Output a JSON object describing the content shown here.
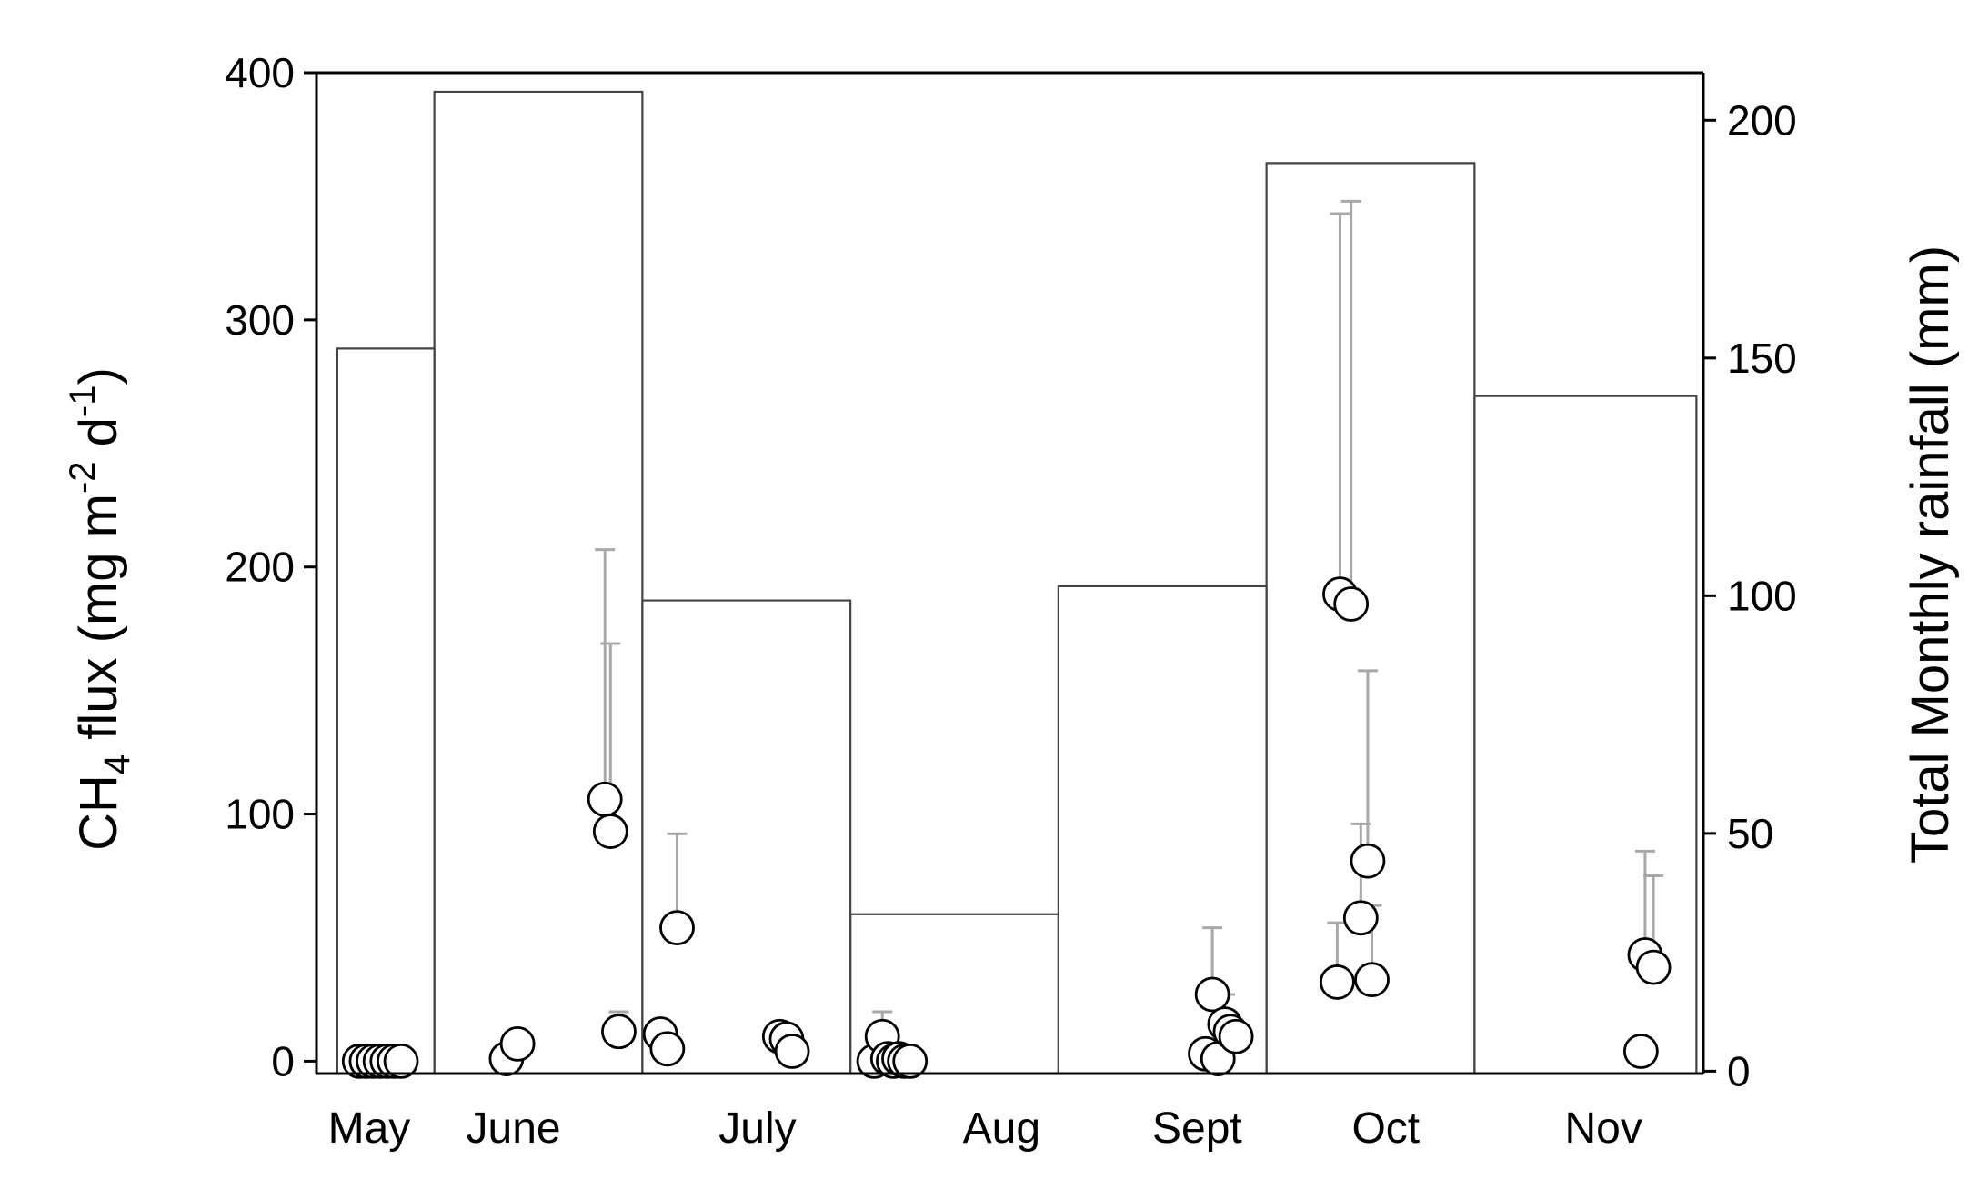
{
  "chart_data": {
    "type": "bar+scatter",
    "y_left": {
      "label": "CH4 flux (mg m-2 d-1)",
      "label_parts": {
        "main": "CH",
        "sub": "4",
        "rest": " flux (mg m",
        "sup1": "-2",
        "mid": " d",
        "sup2": "-1",
        "end": ")"
      },
      "ylim": [
        -5,
        400
      ],
      "ticks": [
        0,
        100,
        200,
        300,
        400
      ]
    },
    "y_right": {
      "label": "Total Monthly rainfall (mm)",
      "ylim": [
        -0.5,
        210
      ],
      "ticks": [
        0,
        50,
        100,
        150,
        200
      ]
    },
    "x": {
      "range": [
        0,
        100
      ]
    },
    "months": [
      {
        "label": "May",
        "label_x": 3.8
      },
      {
        "label": "June",
        "label_x": 14.2
      },
      {
        "label": "July",
        "label_x": 31.8
      },
      {
        "label": "Aug",
        "label_x": 49.4
      },
      {
        "label": "Sept",
        "label_x": 63.5
      },
      {
        "label": "Oct",
        "label_x": 77.1
      },
      {
        "label": "Nov",
        "label_x": 92.8
      }
    ],
    "rainfall_bars": [
      {
        "month": "May",
        "x0": 1.5,
        "x1": 8.5,
        "value": 152
      },
      {
        "month": "June",
        "x0": 8.5,
        "x1": 23.5,
        "value": 206
      },
      {
        "month": "July",
        "x0": 23.5,
        "x1": 38.5,
        "value": 99
      },
      {
        "month": "Aug",
        "x0": 38.5,
        "x1": 53.5,
        "value": 33
      },
      {
        "month": "Sept",
        "x0": 53.5,
        "x1": 68.5,
        "value": 102
      },
      {
        "month": "Oct",
        "x0": 68.5,
        "x1": 83.5,
        "value": 191
      },
      {
        "month": "Nov",
        "x0": 83.5,
        "x1": 99.5,
        "value": 142
      }
    ],
    "ch4_flux_points": [
      {
        "x": 3.1,
        "y": 0,
        "err": 3
      },
      {
        "x": 3.6,
        "y": 0,
        "err": 3
      },
      {
        "x": 4.1,
        "y": 0,
        "err": 3
      },
      {
        "x": 4.6,
        "y": 0,
        "err": 3
      },
      {
        "x": 5.1,
        "y": 0,
        "err": 3
      },
      {
        "x": 5.6,
        "y": 0,
        "err": 3
      },
      {
        "x": 6.1,
        "y": 0,
        "err": 3
      },
      {
        "x": 13.7,
        "y": 1,
        "err": 0
      },
      {
        "x": 14.5,
        "y": 7,
        "err": 0
      },
      {
        "x": 20.8,
        "y": 106,
        "err": 101
      },
      {
        "x": 21.2,
        "y": 93,
        "err": 76
      },
      {
        "x": 21.8,
        "y": 12,
        "err": 8
      },
      {
        "x": 24.8,
        "y": 11,
        "err": 5
      },
      {
        "x": 25.3,
        "y": 5,
        "err": 3
      },
      {
        "x": 26.0,
        "y": 54,
        "err": 38
      },
      {
        "x": 33.4,
        "y": 10,
        "err": 0
      },
      {
        "x": 33.9,
        "y": 9,
        "err": 0
      },
      {
        "x": 34.3,
        "y": 4,
        "err": 0
      },
      {
        "x": 40.2,
        "y": 0,
        "err": 0
      },
      {
        "x": 40.8,
        "y": 10,
        "err": 10
      },
      {
        "x": 41.2,
        "y": 1,
        "err": 0
      },
      {
        "x": 41.6,
        "y": 0,
        "err": 0
      },
      {
        "x": 42.0,
        "y": 1,
        "err": 0
      },
      {
        "x": 42.4,
        "y": 0,
        "err": 0
      },
      {
        "x": 42.8,
        "y": 0,
        "err": 0
      },
      {
        "x": 64.1,
        "y": 3,
        "err": 0
      },
      {
        "x": 64.6,
        "y": 27,
        "err": 27
      },
      {
        "x": 65.0,
        "y": 1,
        "err": 0
      },
      {
        "x": 65.5,
        "y": 15,
        "err": 12
      },
      {
        "x": 65.9,
        "y": 12,
        "err": 0
      },
      {
        "x": 66.3,
        "y": 10,
        "err": 0
      },
      {
        "x": 73.6,
        "y": 32,
        "err": 24
      },
      {
        "x": 73.8,
        "y": 189,
        "err": 154
      },
      {
        "x": 74.6,
        "y": 185,
        "err": 163
      },
      {
        "x": 75.3,
        "y": 58,
        "err": 38
      },
      {
        "x": 75.8,
        "y": 81,
        "err": 77
      },
      {
        "x": 76.1,
        "y": 33,
        "err": 30
      },
      {
        "x": 95.5,
        "y": 4,
        "err": 0
      },
      {
        "x": 95.8,
        "y": 43,
        "err": 42
      },
      {
        "x": 96.4,
        "y": 38,
        "err": 37
      }
    ]
  }
}
